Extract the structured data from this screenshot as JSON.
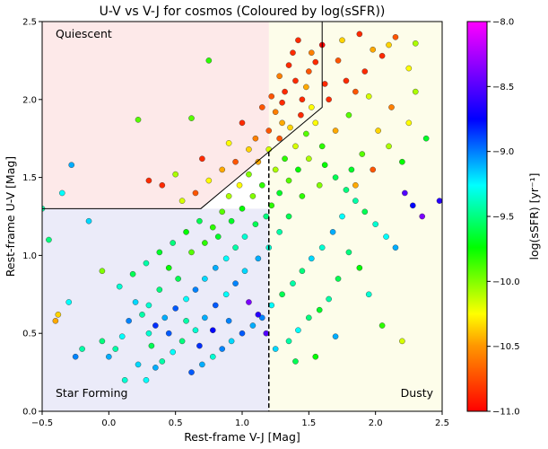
{
  "chart_data": {
    "type": "scatter",
    "title": "U-V vs V-J for cosmos (Coloured by log(sSFR))",
    "xlabel": "Rest-frame V-J [Mag]",
    "ylabel": "Rest-frame U-V [Mag]",
    "xlim": [
      -0.5,
      2.5
    ],
    "ylim": [
      0.0,
      2.5
    ],
    "xticks": [
      -0.5,
      0.0,
      0.5,
      1.0,
      1.5,
      2.0,
      2.5
    ],
    "xtick_labels": [
      "−0.5",
      "0.0",
      "0.5",
      "1.0",
      "1.5",
      "2.0",
      "2.5"
    ],
    "yticks": [
      0.0,
      0.5,
      1.0,
      1.5,
      2.0,
      2.5
    ],
    "ytick_labels": [
      "0.0",
      "0.5",
      "1.0",
      "1.5",
      "2.0",
      "2.5"
    ],
    "grid": false,
    "regions": [
      {
        "label": "Quiescent",
        "color": "#fde9e9"
      },
      {
        "label": "Star Forming",
        "color": "#ebebf9"
      },
      {
        "label": "Dusty",
        "color": "#fdfdea"
      }
    ],
    "boundaries": {
      "quiescent_box": {
        "uv_min": 1.3,
        "vj_max": 1.6,
        "diagonal_from": [
          0.69,
          1.3
        ],
        "diagonal_to": [
          1.6,
          1.95
        ]
      },
      "dusty_split_vj": 1.2
    },
    "colorbar": {
      "label": "log(sSFR) [yr⁻¹]",
      "min": -11.0,
      "max": -8.0,
      "ticks": [
        -8.0,
        -8.5,
        -9.0,
        -9.5,
        -10.0,
        -10.5,
        -11.0
      ],
      "tick_labels": [
        "−8.0",
        "−8.5",
        "−9.0",
        "−9.5",
        "−10.0",
        "−10.5",
        "−11.0"
      ],
      "colormap": "gist_rainbow"
    },
    "points": [
      {
        "x": 1.4,
        "y": 2.12,
        "c": -10.9
      },
      {
        "x": 1.32,
        "y": 2.05,
        "c": -10.9
      },
      {
        "x": 1.5,
        "y": 2.18,
        "c": -10.8
      },
      {
        "x": 1.25,
        "y": 1.92,
        "c": -10.7
      },
      {
        "x": 1.45,
        "y": 2.0,
        "c": -10.9
      },
      {
        "x": 1.55,
        "y": 2.24,
        "c": -10.9
      },
      {
        "x": 1.3,
        "y": 1.85,
        "c": -10.6
      },
      {
        "x": 1.2,
        "y": 1.8,
        "c": -10.8
      },
      {
        "x": 1.38,
        "y": 2.3,
        "c": -10.9
      },
      {
        "x": 1.6,
        "y": 2.35,
        "c": -11.0
      },
      {
        "x": 1.62,
        "y": 2.1,
        "c": -10.9
      },
      {
        "x": 1.1,
        "y": 1.75,
        "c": -10.7
      },
      {
        "x": 1.05,
        "y": 1.68,
        "c": -10.5
      },
      {
        "x": 0.95,
        "y": 1.6,
        "c": -10.8
      },
      {
        "x": 0.85,
        "y": 1.55,
        "c": -10.6
      },
      {
        "x": 0.75,
        "y": 1.48,
        "c": -10.4
      },
      {
        "x": 0.65,
        "y": 1.4,
        "c": -10.8
      },
      {
        "x": 0.55,
        "y": 1.35,
        "c": -10.3
      },
      {
        "x": 0.4,
        "y": 1.45,
        "c": -10.9
      },
      {
        "x": 0.5,
        "y": 1.52,
        "c": -10.2
      },
      {
        "x": 0.7,
        "y": 1.62,
        "c": -10.9
      },
      {
        "x": 0.9,
        "y": 1.72,
        "c": -10.4
      },
      {
        "x": 1.0,
        "y": 1.85,
        "c": -10.9
      },
      {
        "x": 1.15,
        "y": 1.95,
        "c": -10.8
      },
      {
        "x": 1.28,
        "y": 2.15,
        "c": -10.7
      },
      {
        "x": 1.35,
        "y": 2.22,
        "c": -10.9
      },
      {
        "x": 1.48,
        "y": 2.08,
        "c": -10.6
      },
      {
        "x": 1.52,
        "y": 1.95,
        "c": -10.4
      },
      {
        "x": 1.65,
        "y": 2.0,
        "c": -10.9
      },
      {
        "x": 1.72,
        "y": 2.25,
        "c": -10.8
      },
      {
        "x": 1.78,
        "y": 2.12,
        "c": -10.9
      },
      {
        "x": 1.85,
        "y": 2.05,
        "c": -10.8
      },
      {
        "x": 1.92,
        "y": 2.18,
        "c": -10.9
      },
      {
        "x": 2.05,
        "y": 2.28,
        "c": -10.9
      },
      {
        "x": 2.15,
        "y": 2.4,
        "c": -10.8
      },
      {
        "x": 2.25,
        "y": 2.2,
        "c": -10.4
      },
      {
        "x": 2.3,
        "y": 2.36,
        "c": -10.2
      },
      {
        "x": 2.1,
        "y": 2.35,
        "c": -10.5
      },
      {
        "x": 1.95,
        "y": 2.02,
        "c": -10.3
      },
      {
        "x": 1.8,
        "y": 1.9,
        "c": -10.0
      },
      {
        "x": 1.7,
        "y": 1.8,
        "c": -10.6
      },
      {
        "x": 1.6,
        "y": 1.7,
        "c": -9.9
      },
      {
        "x": 1.5,
        "y": 1.62,
        "c": -10.2
      },
      {
        "x": 1.42,
        "y": 1.55,
        "c": -9.8
      },
      {
        "x": 1.35,
        "y": 1.48,
        "c": -10.0
      },
      {
        "x": 1.28,
        "y": 1.4,
        "c": -9.7
      },
      {
        "x": 1.22,
        "y": 1.32,
        "c": -9.9
      },
      {
        "x": 1.18,
        "y": 1.25,
        "c": -9.5
      },
      {
        "x": 1.1,
        "y": 1.2,
        "c": -9.6
      },
      {
        "x": 1.02,
        "y": 1.12,
        "c": -9.3
      },
      {
        "x": 0.95,
        "y": 1.05,
        "c": -9.4
      },
      {
        "x": 0.88,
        "y": 0.98,
        "c": -9.2
      },
      {
        "x": 0.8,
        "y": 0.92,
        "c": -9.0
      },
      {
        "x": 0.72,
        "y": 0.85,
        "c": -9.1
      },
      {
        "x": 0.65,
        "y": 0.78,
        "c": -8.9
      },
      {
        "x": 0.58,
        "y": 0.72,
        "c": -9.2
      },
      {
        "x": 0.5,
        "y": 0.66,
        "c": -8.8
      },
      {
        "x": 0.42,
        "y": 0.6,
        "c": -9.0
      },
      {
        "x": 0.35,
        "y": 0.55,
        "c": -8.7
      },
      {
        "x": 0.3,
        "y": 0.5,
        "c": -9.3
      },
      {
        "x": 0.25,
        "y": 0.62,
        "c": -9.4
      },
      {
        "x": 0.2,
        "y": 0.7,
        "c": -9.1
      },
      {
        "x": 0.15,
        "y": 0.58,
        "c": -8.9
      },
      {
        "x": 0.1,
        "y": 0.48,
        "c": -9.2
      },
      {
        "x": 0.05,
        "y": 0.4,
        "c": -9.4
      },
      {
        "x": 0.0,
        "y": 0.35,
        "c": -9.0
      },
      {
        "x": -0.05,
        "y": 0.45,
        "c": -9.5
      },
      {
        "x": 0.08,
        "y": 0.8,
        "c": -9.3
      },
      {
        "x": 0.18,
        "y": 0.88,
        "c": -9.6
      },
      {
        "x": 0.28,
        "y": 0.95,
        "c": -9.4
      },
      {
        "x": 0.38,
        "y": 1.02,
        "c": -9.7
      },
      {
        "x": 0.48,
        "y": 1.08,
        "c": -9.5
      },
      {
        "x": 0.58,
        "y": 1.15,
        "c": -9.8
      },
      {
        "x": 0.68,
        "y": 1.22,
        "c": -9.6
      },
      {
        "x": 0.78,
        "y": 1.18,
        "c": -9.9
      },
      {
        "x": 0.85,
        "y": 1.28,
        "c": -10.0
      },
      {
        "x": 0.92,
        "y": 1.22,
        "c": -9.7
      },
      {
        "x": 1.0,
        "y": 1.3,
        "c": -9.8
      },
      {
        "x": 1.08,
        "y": 1.38,
        "c": -10.1
      },
      {
        "x": 1.15,
        "y": 1.45,
        "c": -9.9
      },
      {
        "x": 1.25,
        "y": 1.55,
        "c": -10.2
      },
      {
        "x": 1.32,
        "y": 1.62,
        "c": -9.9
      },
      {
        "x": 1.4,
        "y": 1.7,
        "c": -10.3
      },
      {
        "x": 1.48,
        "y": 1.78,
        "c": -10.0
      },
      {
        "x": 1.55,
        "y": 1.85,
        "c": -10.4
      },
      {
        "x": 1.62,
        "y": 1.58,
        "c": -9.8
      },
      {
        "x": 1.7,
        "y": 1.5,
        "c": -9.6
      },
      {
        "x": 1.78,
        "y": 1.42,
        "c": -9.5
      },
      {
        "x": 1.85,
        "y": 1.35,
        "c": -9.4
      },
      {
        "x": 1.92,
        "y": 1.28,
        "c": -9.6
      },
      {
        "x": 2.0,
        "y": 1.2,
        "c": -9.3
      },
      {
        "x": 2.08,
        "y": 1.12,
        "c": -9.2
      },
      {
        "x": 2.15,
        "y": 1.05,
        "c": -9.0
      },
      {
        "x": 2.22,
        "y": 1.4,
        "c": -8.4
      },
      {
        "x": 2.28,
        "y": 1.32,
        "c": -8.6
      },
      {
        "x": 2.35,
        "y": 1.25,
        "c": -8.3
      },
      {
        "x": 2.48,
        "y": 1.35,
        "c": -8.5
      },
      {
        "x": 2.2,
        "y": 1.6,
        "c": -9.8
      },
      {
        "x": 2.1,
        "y": 1.7,
        "c": -10.2
      },
      {
        "x": 2.02,
        "y": 1.8,
        "c": -10.5
      },
      {
        "x": 1.9,
        "y": 1.65,
        "c": -10.0
      },
      {
        "x": 1.82,
        "y": 1.55,
        "c": -9.7
      },
      {
        "x": 1.75,
        "y": 1.25,
        "c": -9.2
      },
      {
        "x": 1.68,
        "y": 1.15,
        "c": -9.0
      },
      {
        "x": 1.6,
        "y": 1.05,
        "c": -9.3
      },
      {
        "x": 1.52,
        "y": 0.98,
        "c": -9.1
      },
      {
        "x": 1.45,
        "y": 0.9,
        "c": -9.5
      },
      {
        "x": 1.38,
        "y": 0.82,
        "c": -9.4
      },
      {
        "x": 1.3,
        "y": 0.75,
        "c": -9.6
      },
      {
        "x": 1.22,
        "y": 0.68,
        "c": -9.2
      },
      {
        "x": 1.15,
        "y": 0.6,
        "c": -8.9
      },
      {
        "x": 1.08,
        "y": 0.55,
        "c": -9.0
      },
      {
        "x": 1.0,
        "y": 0.5,
        "c": -8.8
      },
      {
        "x": 0.92,
        "y": 0.45,
        "c": -9.1
      },
      {
        "x": 0.85,
        "y": 0.4,
        "c": -8.9
      },
      {
        "x": 0.78,
        "y": 0.35,
        "c": -9.3
      },
      {
        "x": 0.7,
        "y": 0.3,
        "c": -9.0
      },
      {
        "x": 0.62,
        "y": 0.25,
        "c": -8.8
      },
      {
        "x": 0.55,
        "y": 0.45,
        "c": -9.5
      },
      {
        "x": 0.48,
        "y": 0.38,
        "c": -9.2
      },
      {
        "x": 0.4,
        "y": 0.32,
        "c": -9.4
      },
      {
        "x": 0.32,
        "y": 0.42,
        "c": -9.6
      },
      {
        "x": 0.22,
        "y": 0.3,
        "c": -9.1
      },
      {
        "x": 0.12,
        "y": 0.2,
        "c": -9.3
      },
      {
        "x": -0.2,
        "y": 0.4,
        "c": -9.4
      },
      {
        "x": -0.25,
        "y": 0.35,
        "c": -8.9
      },
      {
        "x": -0.3,
        "y": 0.7,
        "c": -9.2
      },
      {
        "x": -0.4,
        "y": 0.58,
        "c": -10.6
      },
      {
        "x": -0.38,
        "y": 0.62,
        "c": -10.5
      },
      {
        "x": -0.45,
        "y": 1.1,
        "c": -9.5
      },
      {
        "x": -0.5,
        "y": 1.3,
        "c": -9.4
      },
      {
        "x": -0.35,
        "y": 1.4,
        "c": -9.2
      },
      {
        "x": -0.28,
        "y": 1.58,
        "c": -9.0
      },
      {
        "x": -0.15,
        "y": 1.22,
        "c": -9.1
      },
      {
        "x": -0.05,
        "y": 0.9,
        "c": -10.1
      },
      {
        "x": 0.22,
        "y": 1.87,
        "c": -10.0
      },
      {
        "x": 0.3,
        "y": 1.48,
        "c": -10.9
      },
      {
        "x": 0.75,
        "y": 2.25,
        "c": -9.9
      },
      {
        "x": 0.62,
        "y": 1.88,
        "c": -10.0
      },
      {
        "x": 1.8,
        "y": 1.02,
        "c": -9.5
      },
      {
        "x": 1.88,
        "y": 0.92,
        "c": -9.8
      },
      {
        "x": 1.95,
        "y": 0.75,
        "c": -9.3
      },
      {
        "x": 1.72,
        "y": 0.85,
        "c": -9.6
      },
      {
        "x": 1.65,
        "y": 0.72,
        "c": -9.4
      },
      {
        "x": 1.58,
        "y": 0.65,
        "c": -9.7
      },
      {
        "x": 1.5,
        "y": 0.6,
        "c": -9.5
      },
      {
        "x": 1.42,
        "y": 0.52,
        "c": -9.2
      },
      {
        "x": 1.35,
        "y": 0.45,
        "c": -9.4
      },
      {
        "x": 1.25,
        "y": 0.4,
        "c": -9.1
      },
      {
        "x": 1.18,
        "y": 0.5,
        "c": -8.4
      },
      {
        "x": 1.12,
        "y": 0.62,
        "c": -8.5
      },
      {
        "x": 1.05,
        "y": 0.7,
        "c": -8.3
      },
      {
        "x": 1.4,
        "y": 0.32,
        "c": -9.6
      },
      {
        "x": 1.55,
        "y": 0.35,
        "c": -9.8
      },
      {
        "x": 1.7,
        "y": 0.48,
        "c": -9.0
      },
      {
        "x": 2.2,
        "y": 0.45,
        "c": -10.3
      },
      {
        "x": 2.05,
        "y": 0.55,
        "c": -9.9
      },
      {
        "x": 1.85,
        "y": 1.45,
        "c": -10.6
      },
      {
        "x": 1.98,
        "y": 1.55,
        "c": -10.8
      },
      {
        "x": 2.12,
        "y": 1.95,
        "c": -10.7
      },
      {
        "x": 2.25,
        "y": 1.85,
        "c": -10.4
      },
      {
        "x": 2.38,
        "y": 1.75,
        "c": -9.7
      },
      {
        "x": 2.3,
        "y": 2.05,
        "c": -10.2
      },
      {
        "x": 1.98,
        "y": 2.32,
        "c": -10.6
      },
      {
        "x": 1.88,
        "y": 2.42,
        "c": -10.9
      },
      {
        "x": 1.75,
        "y": 2.38,
        "c": -10.5
      },
      {
        "x": 1.58,
        "y": 1.45,
        "c": -10.1
      },
      {
        "x": 1.45,
        "y": 1.38,
        "c": -9.9
      },
      {
        "x": 1.35,
        "y": 1.25,
        "c": -9.6
      },
      {
        "x": 1.28,
        "y": 1.15,
        "c": -9.4
      },
      {
        "x": 1.2,
        "y": 1.05,
        "c": -9.3
      },
      {
        "x": 1.12,
        "y": 0.98,
        "c": -9.0
      },
      {
        "x": 1.02,
        "y": 0.9,
        "c": -9.1
      },
      {
        "x": 0.95,
        "y": 0.82,
        "c": -8.9
      },
      {
        "x": 0.88,
        "y": 0.75,
        "c": -9.2
      },
      {
        "x": 0.8,
        "y": 0.68,
        "c": -8.8
      },
      {
        "x": 0.72,
        "y": 0.6,
        "c": -9.0
      },
      {
        "x": 0.65,
        "y": 0.52,
        "c": -9.3
      },
      {
        "x": 0.58,
        "y": 0.58,
        "c": -9.4
      },
      {
        "x": 0.52,
        "y": 0.85,
        "c": -9.6
      },
      {
        "x": 0.45,
        "y": 0.92,
        "c": -9.8
      },
      {
        "x": 0.38,
        "y": 0.78,
        "c": -9.5
      },
      {
        "x": 0.3,
        "y": 0.68,
        "c": -9.3
      },
      {
        "x": 0.62,
        "y": 1.02,
        "c": -10.0
      },
      {
        "x": 0.72,
        "y": 1.08,
        "c": -9.9
      },
      {
        "x": 0.82,
        "y": 1.12,
        "c": -9.7
      },
      {
        "x": 0.9,
        "y": 1.38,
        "c": -10.2
      },
      {
        "x": 0.98,
        "y": 1.45,
        "c": -10.4
      },
      {
        "x": 1.05,
        "y": 1.52,
        "c": -10.1
      },
      {
        "x": 1.12,
        "y": 1.6,
        "c": -10.6
      },
      {
        "x": 1.2,
        "y": 1.68,
        "c": -10.3
      },
      {
        "x": 1.28,
        "y": 1.75,
        "c": -10.8
      },
      {
        "x": 1.36,
        "y": 1.82,
        "c": -10.5
      },
      {
        "x": 1.44,
        "y": 1.9,
        "c": -10.9
      },
      {
        "x": 1.3,
        "y": 1.98,
        "c": -10.9
      },
      {
        "x": 1.22,
        "y": 2.02,
        "c": -10.8
      },
      {
        "x": 1.42,
        "y": 2.38,
        "c": -10.9
      },
      {
        "x": 1.52,
        "y": 2.3,
        "c": -10.7
      },
      {
        "x": 0.78,
        "y": 0.52,
        "c": -8.6
      },
      {
        "x": 0.68,
        "y": 0.42,
        "c": -8.7
      },
      {
        "x": 0.9,
        "y": 0.58,
        "c": -8.9
      },
      {
        "x": 0.45,
        "y": 0.5,
        "c": -8.8
      },
      {
        "x": 0.35,
        "y": 0.28,
        "c": -9.0
      },
      {
        "x": 0.28,
        "y": 0.2,
        "c": -9.2
      }
    ]
  }
}
